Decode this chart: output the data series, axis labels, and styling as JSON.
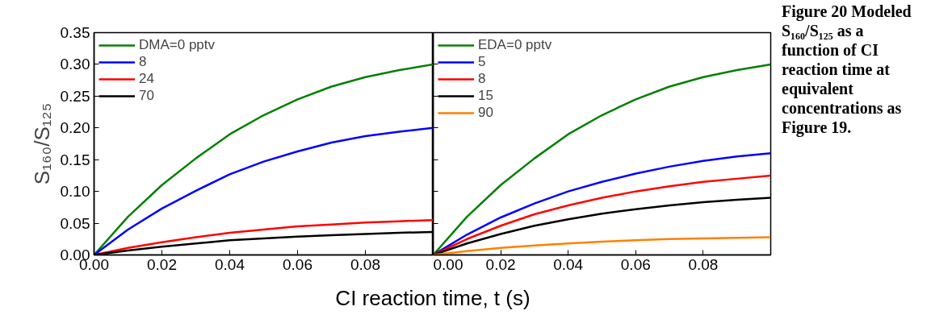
{
  "chart_data": [
    {
      "type": "line",
      "ylabel": "S₁₆₀/S₁₂₅",
      "xlabel": "CI reaction time, t (s)",
      "x": [
        0,
        0.01,
        0.02,
        0.03,
        0.04,
        0.05,
        0.06,
        0.07,
        0.08,
        0.09,
        0.1
      ],
      "xlim": [
        0,
        0.1
      ],
      "xticks": [
        {
          "value": 0,
          "label": "0.00"
        },
        {
          "value": 0.02,
          "label": "0.02"
        },
        {
          "value": 0.04,
          "label": "0.04"
        },
        {
          "value": 0.06,
          "label": "0.06"
        },
        {
          "value": 0.08,
          "label": "0.08"
        }
      ],
      "ylim": [
        0,
        0.35
      ],
      "yticks": [
        {
          "value": 0,
          "label": "0.00"
        },
        {
          "value": 0.05,
          "label": "0.05"
        },
        {
          "value": 0.1,
          "label": "0.10"
        },
        {
          "value": 0.15,
          "label": "0.15"
        },
        {
          "value": 0.2,
          "label": "0.20"
        },
        {
          "value": 0.25,
          "label": "0.25"
        },
        {
          "value": 0.3,
          "label": "0.30"
        },
        {
          "value": 0.35,
          "label": "0.35"
        }
      ],
      "legend": "top left",
      "grid": false,
      "series": [
        {
          "name": "DMA=0 pptv",
          "color": "#008000",
          "values": [
            0,
            0.06,
            0.11,
            0.152,
            0.19,
            0.22,
            0.245,
            0.265,
            0.28,
            0.291,
            0.3
          ]
        },
        {
          "name": "8",
          "color": "#0000ff",
          "values": [
            0,
            0.04,
            0.073,
            0.101,
            0.127,
            0.147,
            0.163,
            0.177,
            0.187,
            0.194,
            0.2
          ]
        },
        {
          "name": "24",
          "color": "#ff0000",
          "values": [
            0,
            0.011,
            0.02,
            0.028,
            0.035,
            0.04,
            0.045,
            0.048,
            0.051,
            0.053,
            0.055
          ]
        },
        {
          "name": "70",
          "color": "#000000",
          "values": [
            0,
            0.007,
            0.013,
            0.018,
            0.023,
            0.026,
            0.029,
            0.031,
            0.033,
            0.035,
            0.036
          ]
        }
      ]
    },
    {
      "type": "line",
      "tick_labels": "x",
      "x": [
        0,
        0.01,
        0.02,
        0.03,
        0.04,
        0.05,
        0.06,
        0.07,
        0.08,
        0.09,
        0.1
      ],
      "xlim": [
        0,
        0.1
      ],
      "xticks": [
        {
          "value": 0,
          "label": "0.00"
        },
        {
          "value": 0.02,
          "label": "0.02"
        },
        {
          "value": 0.04,
          "label": "0.04"
        },
        {
          "value": 0.06,
          "label": "0.06"
        },
        {
          "value": 0.08,
          "label": "0.08"
        }
      ],
      "ylim": [
        0,
        0.35
      ],
      "yticks": [
        {
          "value": 0,
          "label": null
        },
        {
          "value": 0.05,
          "label": null
        },
        {
          "value": 0.1,
          "label": null
        },
        {
          "value": 0.15,
          "label": null
        },
        {
          "value": 0.2,
          "label": null
        },
        {
          "value": 0.25,
          "label": null
        },
        {
          "value": 0.3,
          "label": null
        },
        {
          "value": 0.35,
          "label": null
        }
      ],
      "legend": "top left",
      "grid": false,
      "annotations": [
        "Figure 20 Modeled S₁₆₀/S₁₂₅ as a function of CI reaction time at equivalent concentrations as Figure 19."
      ],
      "series": [
        {
          "name": "EDA=0 pptv",
          "color": "#008000",
          "values": [
            0,
            0.06,
            0.11,
            0.152,
            0.19,
            0.22,
            0.245,
            0.265,
            0.28,
            0.291,
            0.3
          ]
        },
        {
          "name": "5",
          "color": "#0000ff",
          "values": [
            0,
            0.032,
            0.059,
            0.081,
            0.1,
            0.115,
            0.128,
            0.139,
            0.148,
            0.155,
            0.16
          ]
        },
        {
          "name": "8",
          "color": "#ff0000",
          "values": [
            0,
            0.025,
            0.046,
            0.064,
            0.078,
            0.09,
            0.1,
            0.108,
            0.115,
            0.12,
            0.125
          ]
        },
        {
          "name": "15",
          "color": "#000000",
          "values": [
            0,
            0.018,
            0.033,
            0.046,
            0.056,
            0.065,
            0.072,
            0.078,
            0.083,
            0.087,
            0.09
          ]
        },
        {
          "name": "90",
          "color": "#ff8000",
          "values": [
            0,
            0.006,
            0.011,
            0.015,
            0.018,
            0.021,
            0.023,
            0.025,
            0.026,
            0.027,
            0.028
          ]
        }
      ]
    }
  ]
}
